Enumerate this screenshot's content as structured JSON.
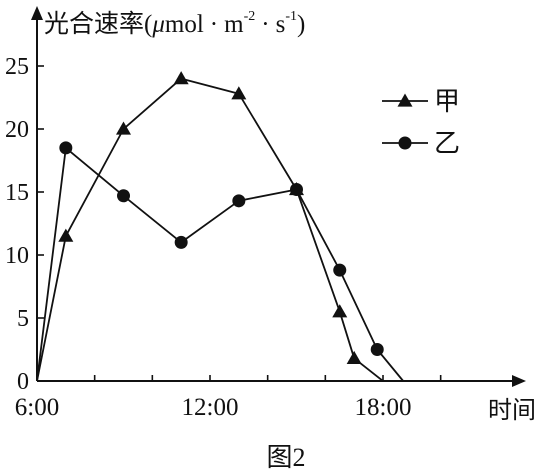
{
  "caption": "图2",
  "colors": {
    "ink": "#111111",
    "background": "#ffffff"
  },
  "chart_data": {
    "type": "line",
    "title": "",
    "ylabel": "光合速率(μmol·m⁻²·s⁻¹)",
    "ylabel_parts": {
      "main": "光合速率(",
      "mu": "μ",
      "mol": "mol",
      "dot": "·",
      "m": "m",
      "exp1": "-2",
      "s": "s",
      "exp2": "-1",
      "close": ")"
    },
    "xlabel": "时间",
    "x_unit": "hour of day",
    "xlim": [
      6,
      24
    ],
    "ylim": [
      0,
      25
    ],
    "x_ticks": [
      6,
      12,
      18
    ],
    "x_tick_labels": [
      "6:00",
      "12:00",
      "18:00"
    ],
    "y_ticks": [
      0,
      5,
      10,
      15,
      20,
      25
    ],
    "y_tick_labels": [
      "0",
      "5",
      "10",
      "15",
      "20",
      "25"
    ],
    "legend_placement": "top-right",
    "series": [
      {
        "name": "甲",
        "marker": "triangle",
        "x": [
          6,
          7,
          9,
          11,
          13,
          15,
          16.5,
          17,
          18
        ],
        "y": [
          0,
          11.5,
          20,
          24,
          22.8,
          15.2,
          5.5,
          1.8,
          0
        ]
      },
      {
        "name": "乙",
        "marker": "circle",
        "x": [
          6,
          7,
          9,
          11,
          13,
          15,
          16.5,
          17.8,
          18.7
        ],
        "y": [
          0,
          18.5,
          14.7,
          11,
          14.3,
          15.2,
          8.8,
          2.5,
          0
        ]
      }
    ]
  }
}
